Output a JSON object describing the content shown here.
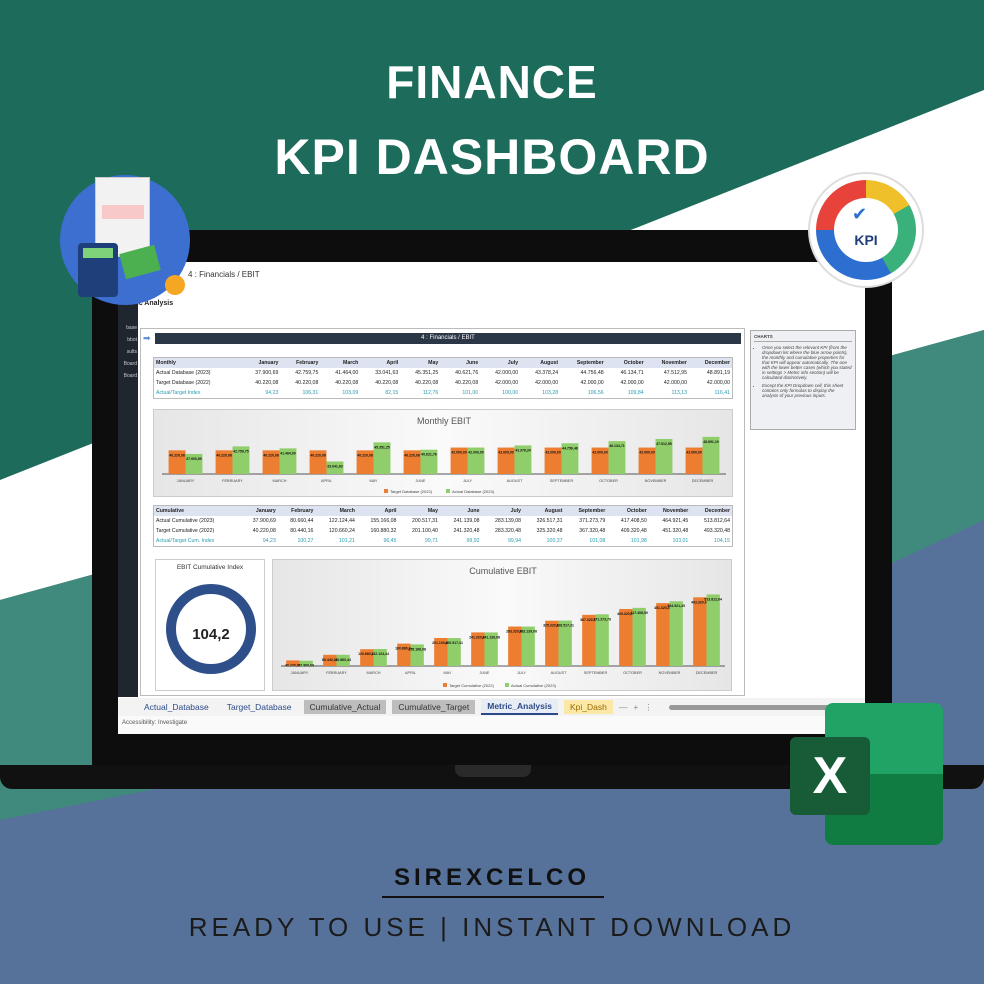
{
  "headline": {
    "line1": "FINANCE",
    "line2": "KPI DASHBOARD"
  },
  "brand": "SIREXCELCO",
  "tagline": "READY TO USE | INSTANT DOWNLOAD",
  "colors": {
    "teal": "#1d6b5a",
    "slate": "#56729a",
    "orange": "#ed7d31",
    "green": "#8fce6a",
    "excel": "#1f8c4d"
  },
  "icons": {
    "top_left": "finance-calculator-icon",
    "top_right": "kpi-gauge-icon",
    "bottom_right": "excel-logo-icon"
  },
  "kpi_badge": "KPI",
  "excel_letter": "X",
  "sheet": {
    "kpi_selector": "4 : Financials / EBIT",
    "page_title": "Metric Analysis",
    "banner": "4 : Financials / EBIT",
    "sidebar": [
      "base",
      "bbot",
      "sults",
      "Board",
      "Board"
    ],
    "months": [
      "January",
      "February",
      "March",
      "April",
      "May",
      "June",
      "July",
      "August",
      "September",
      "October",
      "November",
      "December"
    ],
    "monthly": {
      "header": "Monthly",
      "rows": [
        {
          "label": "Actual Database (2023)",
          "values": [
            "37.900,69",
            "42.759,75",
            "41.464,00",
            "33.041,63",
            "45.351,25",
            "40.621,76",
            "42.000,00",
            "43.378,24",
            "44.756,48",
            "46.134,71",
            "47.512,95",
            "48.891,19"
          ]
        },
        {
          "label": "Target Database (2022)",
          "values": [
            "40.220,08",
            "40.220,08",
            "40.220,08",
            "40.220,08",
            "40.220,08",
            "40.220,08",
            "42.000,00",
            "42.000,00",
            "42.000,00",
            "42.000,00",
            "42.000,00",
            "42.000,00"
          ]
        },
        {
          "label": "Actual/Target Index",
          "values": [
            "94,23",
            "106,31",
            "103,09",
            "82,15",
            "112,76",
            "101,00",
            "100,00",
            "103,28",
            "106,56",
            "109,84",
            "113,13",
            "116,41"
          ]
        }
      ]
    },
    "cumulative": {
      "header": "Cumulative",
      "rows": [
        {
          "label": "Actual Cumulative (2023)",
          "values": [
            "37.900,69",
            "80.660,44",
            "122.124,44",
            "155.166,08",
            "200.517,31",
            "241.139,08",
            "283.139,08",
            "326.517,31",
            "371.273,79",
            "417.408,50",
            "464.921,45",
            "513.812,64"
          ]
        },
        {
          "label": "Target Cumulative (2022)",
          "values": [
            "40.220,08",
            "80.440,16",
            "120.660,24",
            "160.880,32",
            "201.100,40",
            "241.320,48",
            "283.320,48",
            "325.320,48",
            "367.320,48",
            "409.320,48",
            "451.320,48",
            "493.320,48"
          ]
        },
        {
          "label": "Actual/Target Cum. Index",
          "values": [
            "94,23",
            "100,27",
            "101,21",
            "96,45",
            "99,71",
            "99,92",
            "99,94",
            "100,37",
            "101,08",
            "101,98",
            "103,01",
            "104,15"
          ]
        }
      ]
    },
    "donut": {
      "title": "EBIT Cumulative Index",
      "value": "104,2"
    },
    "notes": {
      "title": "CHARTS",
      "items": [
        "Once you select the relevant KPI (from the dropdown list where the blue arrow points), the monthly and cumulative properties for that KPI will appear automatically. The one with the lower better cases (which you stated in settings > Metric info section) will be calculated distinctively.",
        "Except the KPI Dropdown cell, this sheet contains only formulas to display the analysis of your previous inputs."
      ]
    },
    "tabs": [
      {
        "label": "Actual_Database",
        "style": "plain"
      },
      {
        "label": "Target_Database",
        "style": "plain"
      },
      {
        "label": "Cumulative_Actual",
        "style": "gray"
      },
      {
        "label": "Cumulative_Target",
        "style": "gray"
      },
      {
        "label": "Metric_Analysis",
        "style": "active"
      },
      {
        "label": "Kpi_Dash",
        "style": "kpi"
      }
    ],
    "status": "Accessibility: Investigate"
  },
  "chart_data": [
    {
      "type": "bar",
      "title": "Monthly EBIT",
      "categories": [
        "JANUARY",
        "FEBRUARY",
        "MARCH",
        "APRIL",
        "MAY",
        "JUNE",
        "JULY",
        "AUGUST",
        "SEPTEMBER",
        "OCTOBER",
        "NOVEMBER",
        "DECEMBER"
      ],
      "series": [
        {
          "name": "Target Database (2022)",
          "color": "#ed7d31",
          "values": [
            40220.08,
            40220.08,
            40220.08,
            40220.08,
            40220.08,
            40220.08,
            42000,
            42000,
            42000,
            42000,
            42000,
            42000
          ]
        },
        {
          "name": "Actual Database (2023)",
          "color": "#8fce6a",
          "values": [
            37900.69,
            42759.75,
            41464,
            33041.63,
            45351.25,
            40621.76,
            42000,
            43378.24,
            44756.48,
            46134.71,
            47512.95,
            48891.19
          ]
        }
      ],
      "ylim": [
        25000,
        52000
      ],
      "legend": "bottom",
      "grid": false
    },
    {
      "type": "bar",
      "title": "Cumulative EBIT",
      "categories": [
        "JANUARY",
        "FEBRUARY",
        "MARCH",
        "APRIL",
        "MAY",
        "JUNE",
        "JULY",
        "AUGUST",
        "SEPTEMBER",
        "OCTOBER",
        "NOVEMBER",
        "DECEMBER"
      ],
      "series": [
        {
          "name": "Target Cumulative (2022)",
          "color": "#ed7d31",
          "values": [
            40220.08,
            80440.16,
            120660.24,
            160880.32,
            201100.4,
            241320.48,
            283320.48,
            325320.48,
            367320.48,
            409320.48,
            451320.48,
            493320.48
          ]
        },
        {
          "name": "Actual Cumulative (2023)",
          "color": "#8fce6a",
          "values": [
            37900.69,
            80660.44,
            122124.44,
            155166.08,
            200517.31,
            241139.08,
            283139.08,
            326517.31,
            371273.79,
            417408.5,
            464921.45,
            513812.64
          ]
        }
      ],
      "ylim": [
        0,
        560000
      ],
      "legend": "bottom",
      "grid": false
    }
  ]
}
